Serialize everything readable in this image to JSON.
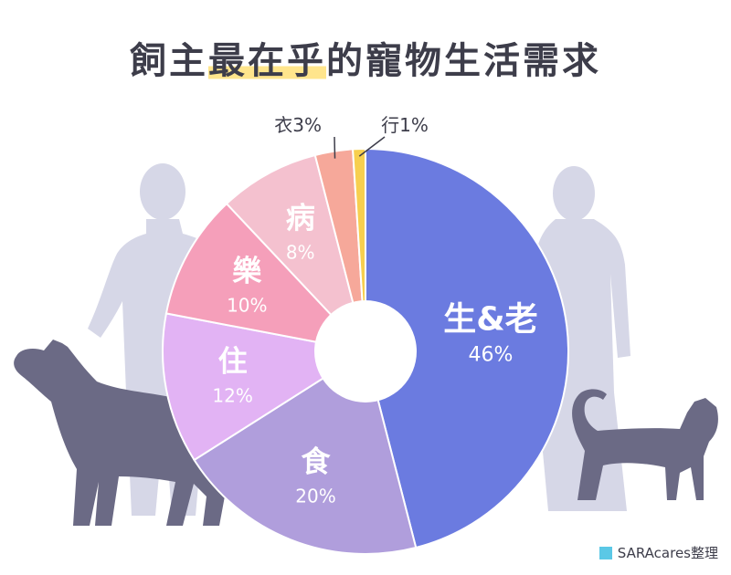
{
  "title": {
    "part1": "飼主",
    "highlight": "最在乎",
    "part2": "的寵物生活需求"
  },
  "source": "SARAcares整理",
  "colors": {
    "silhouette_people": "#d6d7e7",
    "silhouette_pets": "#6b6a85",
    "source_swatch": "#5bc8e6"
  },
  "chart_data": {
    "type": "pie",
    "donut": true,
    "categories": [
      "生&老",
      "食",
      "住",
      "樂",
      "病",
      "衣",
      "行"
    ],
    "values": [
      46,
      20,
      12,
      10,
      8,
      3,
      1
    ],
    "labels": [
      "46%",
      "20%",
      "12%",
      "10%",
      "8%",
      "3%",
      "1%"
    ],
    "colors": [
      "#6b7be0",
      "#b09edc",
      "#e2b3f4",
      "#f59fba",
      "#f4c1cf",
      "#f6a89a",
      "#f7cf4f"
    ],
    "label_placement": [
      "inside",
      "inside",
      "inside",
      "inside",
      "inside",
      "outside",
      "outside"
    ]
  }
}
